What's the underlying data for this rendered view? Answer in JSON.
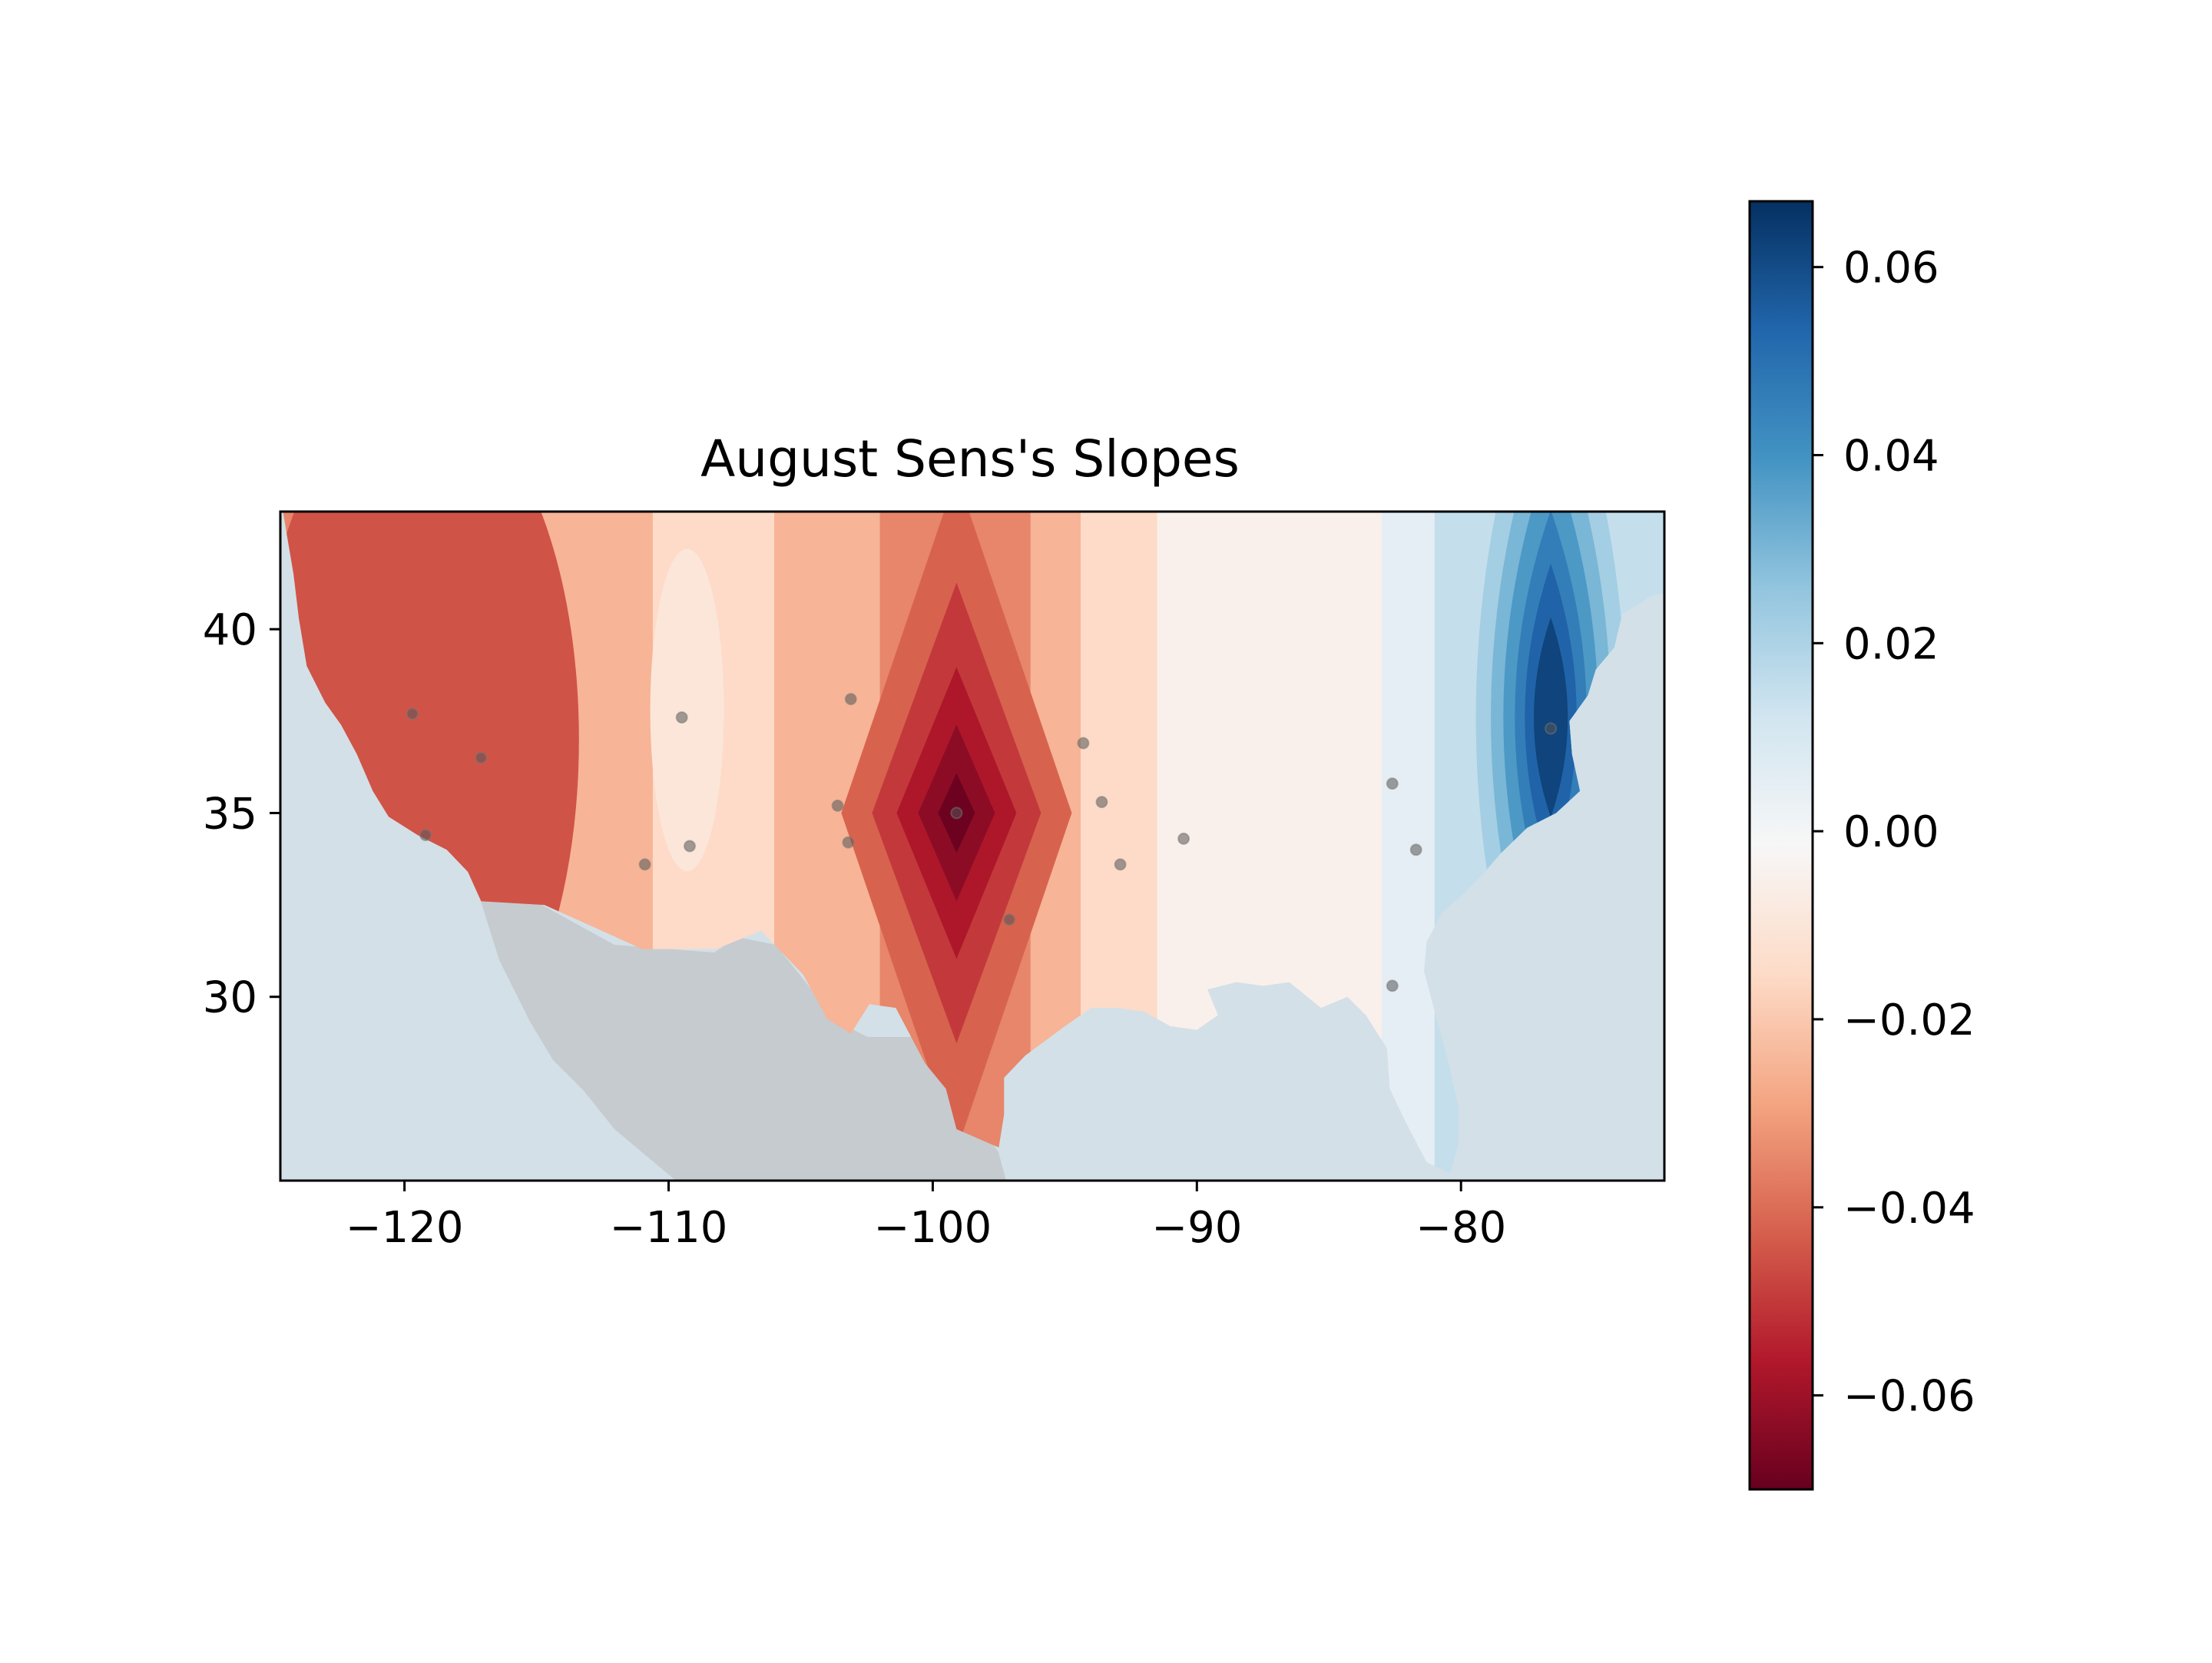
{
  "chart_data": {
    "type": "contour-map",
    "title": "August Sens's Slopes",
    "xlabel": "",
    "ylabel": "",
    "xlim": [
      -124.7,
      -72.3
    ],
    "ylim": [
      25.0,
      43.2
    ],
    "xticks": [
      -120,
      -110,
      -100,
      -90,
      -80
    ],
    "xtick_labels": [
      "−120",
      "−110",
      "−100",
      "−90",
      "−80"
    ],
    "yticks": [
      30,
      35,
      40
    ],
    "ytick_labels": [
      "30",
      "35",
      "40"
    ],
    "grid": false,
    "colormap": "RdBu",
    "colorbar": {
      "vmin": -0.07,
      "vmax": 0.067,
      "ticks": [
        -0.06,
        -0.04,
        -0.02,
        0.0,
        0.02,
        0.04,
        0.06
      ],
      "tick_labels": [
        "−0.06",
        "−0.04",
        "−0.02",
        "0.00",
        "0.02",
        "0.04",
        "0.06"
      ],
      "placement": "right"
    },
    "stations": [
      {
        "lon": -119.7,
        "lat": 37.7
      },
      {
        "lon": -117.1,
        "lat": 36.5
      },
      {
        "lon": -119.2,
        "lat": 34.4
      },
      {
        "lon": -109.5,
        "lat": 37.6
      },
      {
        "lon": -109.2,
        "lat": 34.1
      },
      {
        "lon": -110.9,
        "lat": 33.6
      },
      {
        "lon": -103.1,
        "lat": 38.1
      },
      {
        "lon": -103.6,
        "lat": 35.2
      },
      {
        "lon": -103.2,
        "lat": 34.2
      },
      {
        "lon": -99.1,
        "lat": 35.0
      },
      {
        "lon": -97.1,
        "lat": 32.1
      },
      {
        "lon": -94.3,
        "lat": 36.9
      },
      {
        "lon": -93.6,
        "lat": 35.3
      },
      {
        "lon": -92.9,
        "lat": 33.6
      },
      {
        "lon": -90.5,
        "lat": 34.3
      },
      {
        "lon": -82.6,
        "lat": 35.8
      },
      {
        "lon": -81.7,
        "lat": 34.0
      },
      {
        "lon": -82.6,
        "lat": 30.3
      },
      {
        "lon": -76.6,
        "lat": 37.3
      }
    ],
    "field_bands": [
      {
        "lon_from": -124.7,
        "lon_to": -114.9,
        "value": -0.035
      },
      {
        "lon_from": -114.9,
        "lon_to": -110.6,
        "value": -0.025
      },
      {
        "lon_from": -110.6,
        "lon_to": -106.0,
        "value": -0.015
      },
      {
        "lon_from": -106.0,
        "lon_to": -102.0,
        "value": -0.025
      },
      {
        "lon_from": -102.0,
        "lon_to": -96.3,
        "value": -0.035
      },
      {
        "lon_from": -96.3,
        "lon_to": -94.4,
        "value": -0.025
      },
      {
        "lon_from": -94.4,
        "lon_to": -91.5,
        "value": -0.015
      },
      {
        "lon_from": -91.5,
        "lon_to": -83.0,
        "value": -0.005
      },
      {
        "lon_from": -83.0,
        "lon_to": -81.0,
        "value": 0.005
      },
      {
        "lon_from": -81.0,
        "lon_to": -79.0,
        "value": 0.015
      },
      {
        "lon_from": -79.0,
        "lon_to": -72.3,
        "value": 0.015
      }
    ],
    "field_extrema": [
      {
        "lon": -99.1,
        "lat": 35.0,
        "value": -0.07,
        "kind": "minimum"
      },
      {
        "lon": -76.6,
        "lat": 37.6,
        "value": 0.067,
        "kind": "maximum"
      },
      {
        "lon": -109.3,
        "lat": 37.8,
        "value": -0.01,
        "kind": "local-maximum"
      },
      {
        "lon": -119.5,
        "lat": 37.0,
        "value": -0.045,
        "kind": "local-minimum"
      }
    ]
  }
}
